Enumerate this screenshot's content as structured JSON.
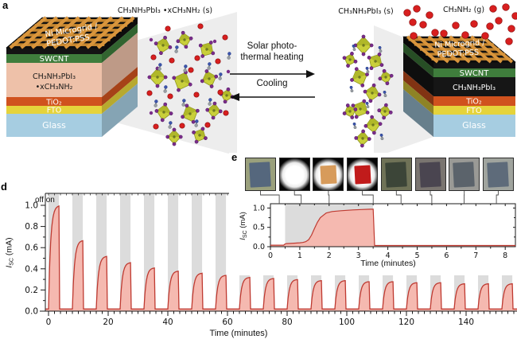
{
  "colors": {
    "trace": "#bf3a31",
    "fill": "#f5b9b0",
    "band": "#dcdcdc",
    "axis": "#1a1a1a",
    "microgrid": "#d9953c",
    "microgrid_dark": "#c5862f",
    "top_face": "#101010",
    "gas_dot": "#d81f1f",
    "octahedron": "#c9cf3a",
    "iodine_dot": "#7a2d89",
    "methylamine_red": "#d62020"
  },
  "panel_a": {
    "label": "a",
    "device_left": {
      "microgrid_label": [
        "Ni Microgrid /",
        "PEDOT:PSS"
      ],
      "layers": [
        {
          "label": "SWCNT",
          "color": "#3f7d3c"
        },
        {
          "label": "CH₃NH₃PbI₃",
          "label2": "•xCH₃NH₂",
          "color": "#eec1a9"
        },
        {
          "label": "TiO₂",
          "color": "#d0521e"
        },
        {
          "label": "FTO",
          "color": "#e5d33b"
        },
        {
          "label": "Glass",
          "color": "#a6cde1"
        }
      ]
    },
    "device_right": {
      "gas_label": "CH₃NH₂ (g)",
      "microgrid_label": [
        "Ni Microgrid /",
        "PEDOT:PSS"
      ],
      "layers": [
        {
          "label": "SWCNT",
          "color": "#3f7d3c"
        },
        {
          "label": "CH₃NH₃PbI₃",
          "color": "#161616"
        },
        {
          "label": "TiO₂",
          "color": "#d0521e"
        },
        {
          "label": "FTO",
          "color": "#e5d33b"
        },
        {
          "label": "Glass",
          "color": "#a6cde1"
        }
      ]
    },
    "crystal_left_label": "CH₃NH₃PbI₃ •xCH₃NH₂ (s)",
    "crystal_right_label": "CH₃NH₃PbI₃ (s)",
    "arrow_forward": [
      "Solar photo-",
      "thermal heating"
    ],
    "arrow_reverse": "Cooling"
  },
  "panel_d": {
    "label": "d",
    "annotation": "off on",
    "ylabel": {
      "i": "I",
      "sub": "SC",
      "unit": " (mA)"
    },
    "xlabel": "Time (minutes)"
  },
  "panel_e": {
    "label": "e",
    "ylabel": {
      "i": "I",
      "sub": "SC",
      "unit": " (mA)"
    },
    "xlabel": "Time (minutes)",
    "photo_link_times": [
      0.3,
      1.05,
      2.0,
      3.5,
      4.45,
      5.5,
      6.6,
      7.7
    ],
    "photos": [
      {
        "name": "device-photo-initial-dark",
        "bg": "#9aa07c",
        "film": "#55677d",
        "glow": false,
        "film_alpha": 1
      },
      {
        "name": "device-photo-light-on-glow",
        "bg": "#050505",
        "film": "",
        "glow": true,
        "film_alpha": 1
      },
      {
        "name": "device-photo-light-on-orange-film",
        "bg": "#050505",
        "film": "#d08a3e",
        "glow": true,
        "film_alpha": 0.85
      },
      {
        "name": "device-photo-light-on-red-film",
        "bg": "#050505",
        "film": "#c11b1b",
        "glow": true,
        "film_alpha": 1
      },
      {
        "name": "device-photo-cooling-1",
        "bg": "#6f7257",
        "film": "#3c4538",
        "glow": false,
        "film_alpha": 1
      },
      {
        "name": "device-photo-cooling-2",
        "bg": "#7a7570",
        "film": "#4a4550",
        "glow": false,
        "film_alpha": 1
      },
      {
        "name": "device-photo-cooling-3",
        "bg": "#9a9a96",
        "film": "#5b636b",
        "glow": false,
        "film_alpha": 1
      },
      {
        "name": "device-photo-cooling-4",
        "bg": "#a0a49e",
        "film": "#5e6b7a",
        "glow": false,
        "film_alpha": 1
      }
    ]
  },
  "chart_data": [
    {
      "type": "area",
      "panel": "d",
      "xlabel": "Time (minutes)",
      "ylabel": "Isc (mA)",
      "xlim": [
        -1,
        157
      ],
      "ylim": [
        0,
        1.12
      ],
      "xticks": [
        0,
        20,
        40,
        60,
        80,
        100,
        120,
        140
      ],
      "x_minor_step": 2,
      "yticks": [
        0.0,
        0.2,
        0.4,
        0.6,
        0.8,
        1.0
      ],
      "y_minor_step": 0.1,
      "grid": false,
      "baseline": 0.02,
      "light_on_duration_min": 3.5,
      "rise_tau_min": 0.7,
      "annotation": "off on",
      "shaded_bands": "light-on periods",
      "cycles": [
        {
          "t_on": 0,
          "t_off": 3.5,
          "peak": 1.0
        },
        {
          "t_on": 8,
          "t_off": 11.5,
          "peak": 0.67
        },
        {
          "t_on": 16,
          "t_off": 19.5,
          "peak": 0.52
        },
        {
          "t_on": 24,
          "t_off": 27.5,
          "peak": 0.46
        },
        {
          "t_on": 32,
          "t_off": 35.5,
          "peak": 0.41
        },
        {
          "t_on": 40,
          "t_off": 43.5,
          "peak": 0.38
        },
        {
          "t_on": 48,
          "t_off": 51.5,
          "peak": 0.36
        },
        {
          "t_on": 56,
          "t_off": 59.5,
          "peak": 0.34
        },
        {
          "t_on": 64,
          "t_off": 67.5,
          "peak": 0.32
        },
        {
          "t_on": 72,
          "t_off": 75.5,
          "peak": 0.31
        },
        {
          "t_on": 80,
          "t_off": 83.5,
          "peak": 0.3
        },
        {
          "t_on": 88,
          "t_off": 91.5,
          "peak": 0.29
        },
        {
          "t_on": 96,
          "t_off": 99.5,
          "peak": 0.29
        },
        {
          "t_on": 104,
          "t_off": 107.5,
          "peak": 0.28
        },
        {
          "t_on": 112,
          "t_off": 115.5,
          "peak": 0.28
        },
        {
          "t_on": 120,
          "t_off": 123.5,
          "peak": 0.27
        },
        {
          "t_on": 128,
          "t_off": 131.5,
          "peak": 0.27
        },
        {
          "t_on": 136,
          "t_off": 139.5,
          "peak": 0.26
        },
        {
          "t_on": 144,
          "t_off": 147.5,
          "peak": 0.26
        },
        {
          "t_on": 152,
          "t_off": 155.5,
          "peak": 0.26
        }
      ]
    },
    {
      "type": "area",
      "panel": "e-inset",
      "xlabel": "Time (minutes)",
      "ylabel": "Isc (mA)",
      "xlim": [
        0,
        8.35
      ],
      "ylim": [
        0,
        1.12
      ],
      "xticks": [
        0,
        1,
        2,
        3,
        4,
        5,
        6,
        7,
        8
      ],
      "x_minor_step": 0.5,
      "yticks": [
        0.0,
        0.5,
        1.0
      ],
      "y_minor_step": 0.25,
      "grid": false,
      "light_on": [
        0.5,
        3.5
      ],
      "curve_t": [
        0,
        0.45,
        0.5,
        0.55,
        0.8,
        1.0,
        1.1,
        1.2,
        1.3,
        1.4,
        1.5,
        1.6,
        1.7,
        1.9,
        2.1,
        2.4,
        2.8,
        3.1,
        3.4,
        3.5,
        3.55,
        4.0,
        5.0,
        6.0,
        7.0,
        8.0,
        8.35
      ],
      "curve_i": [
        0.04,
        0.04,
        0.07,
        0.08,
        0.09,
        0.1,
        0.11,
        0.13,
        0.18,
        0.3,
        0.47,
        0.63,
        0.75,
        0.87,
        0.91,
        0.93,
        0.95,
        0.96,
        0.97,
        0.97,
        0.03,
        0.03,
        0.03,
        0.03,
        0.03,
        0.03,
        0.03
      ]
    }
  ]
}
